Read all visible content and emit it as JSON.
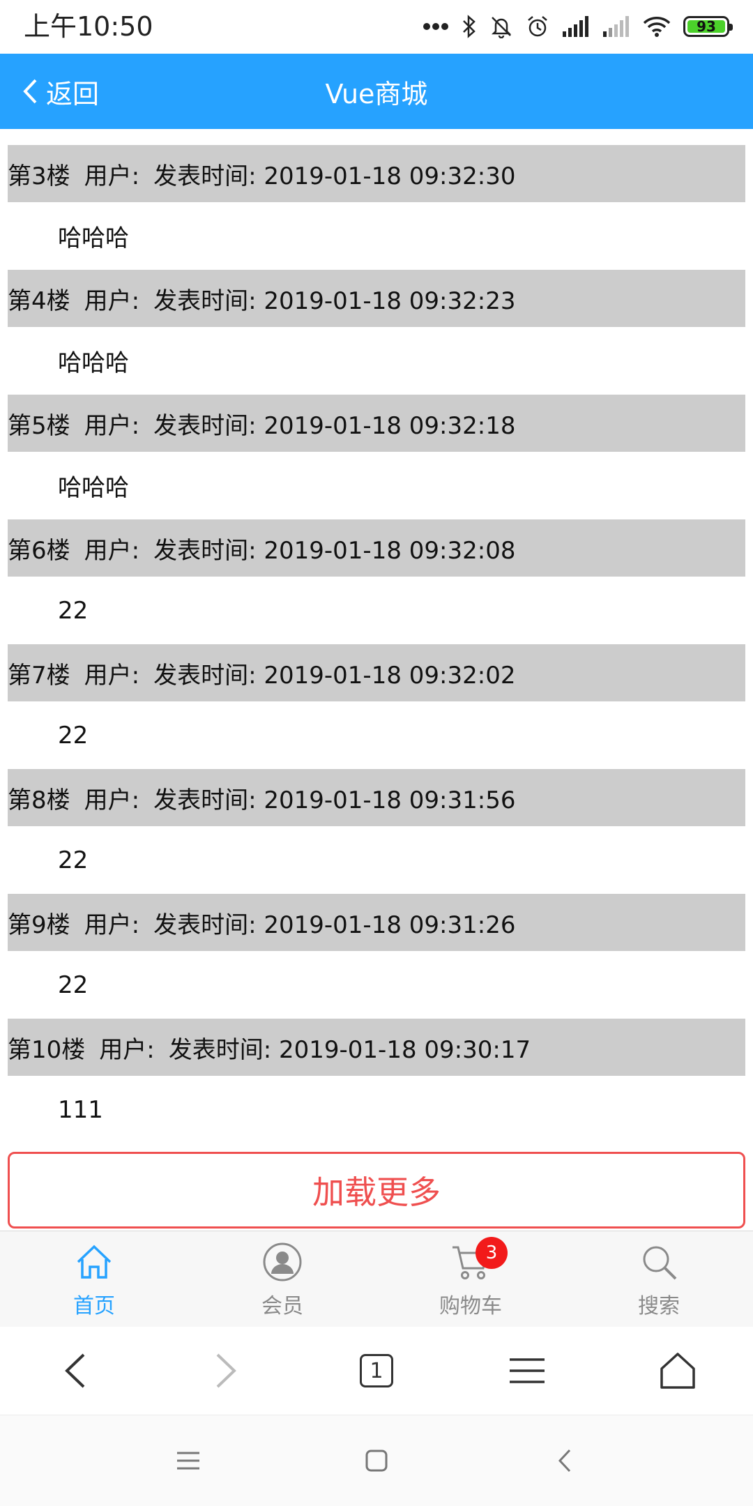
{
  "status_bar": {
    "time": "上午10:50",
    "battery": "93"
  },
  "header": {
    "back_label": "返回",
    "title": "Vue商城"
  },
  "comments": [
    {
      "floor": "第3楼",
      "user": "用户:",
      "time": "发表时间: 2019-01-18 09:32:30",
      "content": "哈哈哈"
    },
    {
      "floor": "第4楼",
      "user": "用户:",
      "time": "发表时间: 2019-01-18 09:32:23",
      "content": "哈哈哈"
    },
    {
      "floor": "第5楼",
      "user": "用户:",
      "time": "发表时间: 2019-01-18 09:32:18",
      "content": "哈哈哈"
    },
    {
      "floor": "第6楼",
      "user": "用户:",
      "time": "发表时间: 2019-01-18 09:32:08",
      "content": "22"
    },
    {
      "floor": "第7楼",
      "user": "用户:",
      "time": "发表时间: 2019-01-18 09:32:02",
      "content": "22"
    },
    {
      "floor": "第8楼",
      "user": "用户:",
      "time": "发表时间: 2019-01-18 09:31:56",
      "content": "22"
    },
    {
      "floor": "第9楼",
      "user": "用户:",
      "time": "发表时间: 2019-01-18 09:31:26",
      "content": "22"
    },
    {
      "floor": "第10楼",
      "user": "用户:",
      "time": "发表时间: 2019-01-18 09:30:17",
      "content": "111"
    }
  ],
  "load_more_label": "加载更多",
  "tabbar": {
    "items": [
      {
        "label": "首页",
        "icon": "home-icon",
        "active": true
      },
      {
        "label": "会员",
        "icon": "member-icon",
        "active": false
      },
      {
        "label": "购物车",
        "icon": "cart-icon",
        "active": false,
        "badge": "3"
      },
      {
        "label": "搜索",
        "icon": "search-icon",
        "active": false
      }
    ]
  },
  "browser": {
    "tab_count": "1"
  },
  "colors": {
    "accent": "#26a2ff",
    "danger": "#ef4f4f",
    "comment_header_bg": "#cccccc",
    "badge": "#f21a1a"
  }
}
